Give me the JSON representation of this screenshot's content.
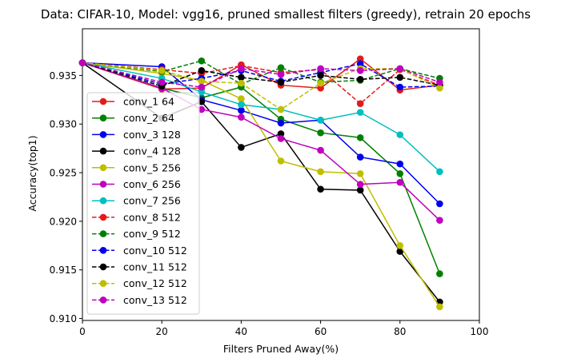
{
  "chart_data": {
    "type": "line",
    "title": "Data: CIFAR-10, Model: vgg16, pruned smallest filters (greedy), retrain 20 epochs",
    "xlabel": "Filters Pruned Away(%)",
    "ylabel": "Accuracy(top1)",
    "xlim": [
      0,
      100
    ],
    "ylim": [
      0.9098,
      0.9398
    ],
    "xticks": [
      0,
      20,
      40,
      60,
      80,
      100
    ],
    "yticks": [
      0.91,
      0.915,
      0.92,
      0.925,
      0.93,
      0.935
    ],
    "ytick_labels": [
      "0.910",
      "0.915",
      "0.920",
      "0.925",
      "0.930",
      "0.935"
    ],
    "grid": false,
    "legend_position": "center-left",
    "x": [
      0,
      20,
      30,
      40,
      50,
      60,
      70,
      80,
      90
    ],
    "series": [
      {
        "name": "conv_1 64",
        "color": "#e31a1c",
        "style": "solid",
        "values": [
          0.9363,
          0.9336,
          0.9337,
          0.9361,
          0.934,
          0.9337,
          0.9367,
          0.9335,
          0.934
        ]
      },
      {
        "name": "conv_2 64",
        "color": "#008000",
        "style": "solid",
        "values": [
          0.9363,
          0.9337,
          0.9327,
          0.9338,
          0.9305,
          0.9291,
          0.9286,
          0.9249,
          0.9146
        ]
      },
      {
        "name": "conv_3 128",
        "color": "#0000ee",
        "style": "solid",
        "values": [
          0.9363,
          0.9359,
          0.9325,
          0.9314,
          0.9301,
          0.9304,
          0.9266,
          0.9259,
          0.9218
        ]
      },
      {
        "name": "conv_4 128",
        "color": "#000000",
        "style": "solid",
        "values": [
          0.9363,
          0.9306,
          0.9323,
          0.9276,
          0.929,
          0.9233,
          0.9232,
          0.9169,
          0.9117
        ]
      },
      {
        "name": "conv_5 256",
        "color": "#bfbf00",
        "style": "solid",
        "values": [
          0.9363,
          0.9352,
          0.9345,
          0.9326,
          0.9262,
          0.9251,
          0.9249,
          0.9175,
          0.9112
        ]
      },
      {
        "name": "conv_6 256",
        "color": "#bf00bf",
        "style": "solid",
        "values": [
          0.9363,
          0.9337,
          0.9315,
          0.9307,
          0.9285,
          0.9273,
          0.9238,
          0.924,
          0.9201
        ]
      },
      {
        "name": "conv_7 256",
        "color": "#00bfbf",
        "style": "solid",
        "values": [
          0.9363,
          0.9347,
          0.9333,
          0.932,
          0.9315,
          0.9304,
          0.9312,
          0.9289,
          0.9251
        ]
      },
      {
        "name": "conv_8 512",
        "color": "#e31a1c",
        "style": "dashed",
        "values": [
          0.9363,
          0.9356,
          0.9352,
          0.936,
          0.9353,
          0.9356,
          0.9321,
          0.9356,
          0.934
        ]
      },
      {
        "name": "conv_9 512",
        "color": "#008000",
        "style": "dashed",
        "values": [
          0.9363,
          0.9354,
          0.9365,
          0.9341,
          0.9358,
          0.9343,
          0.9345,
          0.9357,
          0.9347
        ]
      },
      {
        "name": "conv_10 512",
        "color": "#0000ee",
        "style": "dashed",
        "values": [
          0.9363,
          0.9341,
          0.9347,
          0.9355,
          0.9344,
          0.9353,
          0.9362,
          0.9338,
          0.9339
        ]
      },
      {
        "name": "conv_11 512",
        "color": "#000000",
        "style": "dashed",
        "values": [
          0.9363,
          0.9339,
          0.9355,
          0.9348,
          0.9343,
          0.935,
          0.9346,
          0.9348,
          0.934
        ]
      },
      {
        "name": "conv_12 512",
        "color": "#bfbf00",
        "style": "dashed",
        "values": [
          0.9363,
          0.9355,
          0.9344,
          0.9342,
          0.9315,
          0.9342,
          0.9357,
          0.9357,
          0.9337
        ]
      },
      {
        "name": "conv_13 512",
        "color": "#bf00bf",
        "style": "dashed",
        "values": [
          0.9363,
          0.9343,
          0.9338,
          0.9357,
          0.9351,
          0.9357,
          0.9355,
          0.9357,
          0.9343
        ]
      }
    ]
  }
}
